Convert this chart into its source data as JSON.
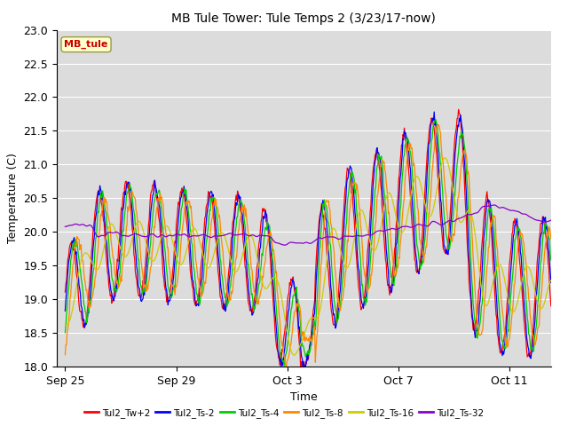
{
  "title": "MB Tule Tower: Tule Temps 2 (3/23/17-now)",
  "xlabel": "Time",
  "ylabel": "Temperature (C)",
  "ylim": [
    18.0,
    23.0
  ],
  "yticks": [
    18.0,
    18.5,
    19.0,
    19.5,
    20.0,
    20.5,
    21.0,
    21.5,
    22.0,
    22.5,
    23.0
  ],
  "bg_color": "#dcdcdc",
  "fig_bg_color": "#ffffff",
  "annotation_text": "MB_tule",
  "annotation_color": "#cc0000",
  "annotation_bg": "#ffffcc",
  "annotation_border": "#999944",
  "series_colors": [
    "#ff0000",
    "#0000ff",
    "#00cc00",
    "#ff8800",
    "#cccc00",
    "#8800cc"
  ],
  "series_labels": [
    "Tul2_Tw+2",
    "Tul2_Ts-2",
    "Tul2_Ts-4",
    "Tul2_Ts-8",
    "Tul2_Ts-16",
    "Tul2_Ts-32"
  ],
  "x_tick_labels": [
    "Sep 25",
    "Sep 29",
    "Oct 3",
    "Oct 7",
    "Oct 11"
  ],
  "x_tick_positions": [
    0,
    4,
    8,
    12,
    16
  ],
  "total_days": 17.5,
  "num_points": 700
}
